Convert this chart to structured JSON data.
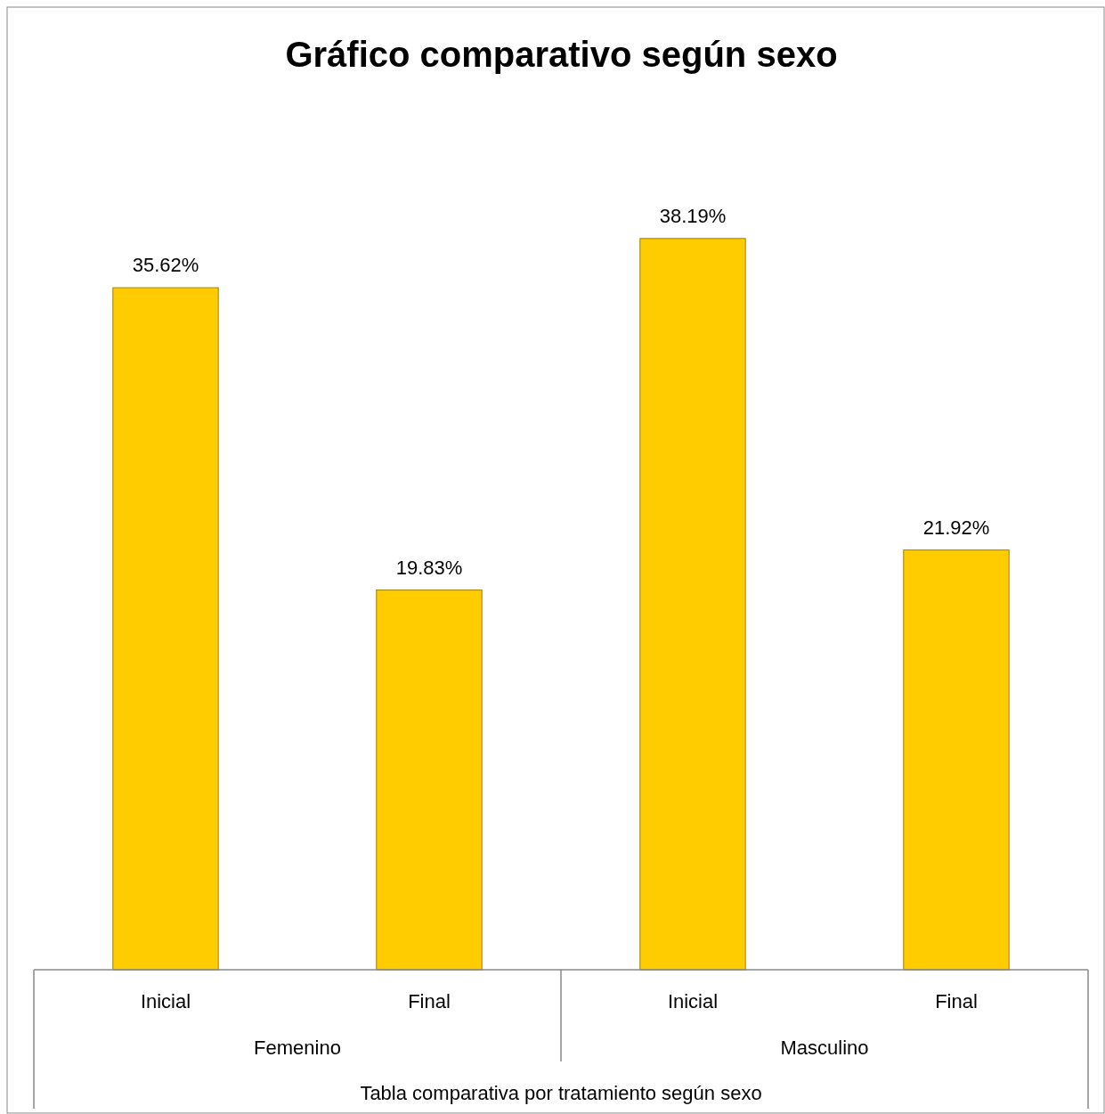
{
  "chart_data": {
    "type": "bar",
    "title": "Gráfico comparativo según sexo",
    "xlabel": "Tabla comparativa por tratamiento según sexo",
    "categories": [
      "Inicial",
      "Final",
      "Inicial",
      "Final"
    ],
    "annotations": [
      "Femenino",
      "Masculino"
    ],
    "values": [
      35.62,
      19.83,
      38.19,
      21.92
    ],
    "value_labels": [
      "35.62%",
      "19.83%",
      "38.19%",
      "21.92%"
    ],
    "color": "#ffcc00"
  }
}
